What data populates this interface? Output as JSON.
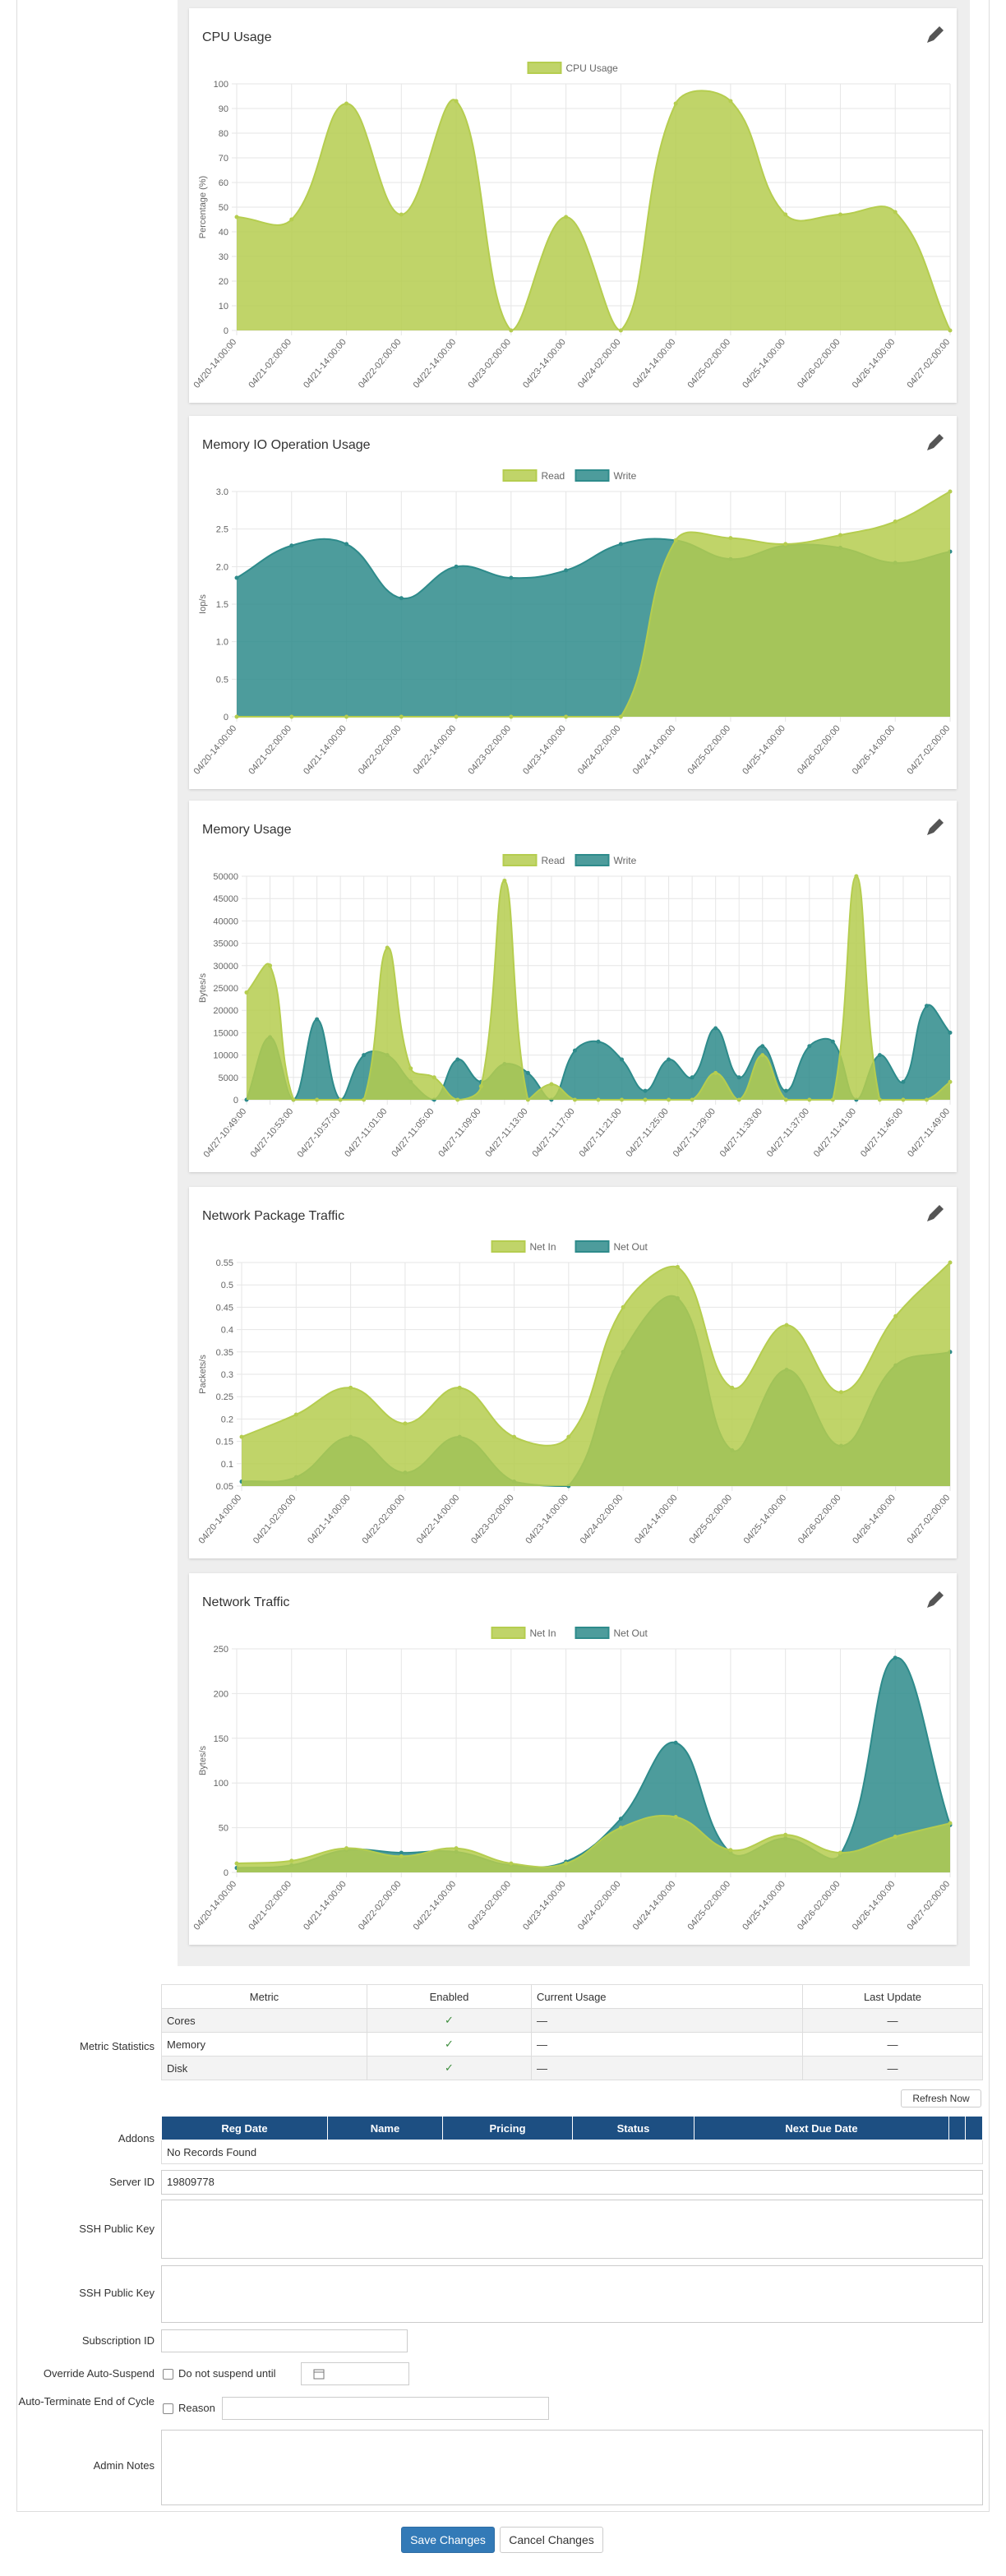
{
  "chart_data": [
    {
      "type": "area",
      "title": "CPU Usage",
      "y_label": "Percentage (%)",
      "categories": [
        "04/20-14:00:00",
        "04/21-02:00:00",
        "04/21-14:00:00",
        "04/22-02:00:00",
        "04/22-14:00:00",
        "04/23-02:00:00",
        "04/23-14:00:00",
        "04/24-02:00:00",
        "04/24-14:00:00",
        "04/25-02:00:00",
        "04/25-14:00:00",
        "04/26-02:00:00",
        "04/26-14:00:00",
        "04/27-02:00:00"
      ],
      "series": [
        {
          "name": "CPU Usage",
          "color": "#b5cd4f",
          "values": [
            46,
            45,
            92,
            47,
            93,
            0,
            46,
            0,
            92,
            93,
            47,
            47,
            48,
            0
          ]
        }
      ],
      "ylim": [
        0,
        100
      ],
      "yticks": [
        0,
        10,
        20,
        30,
        40,
        50,
        60,
        70,
        80,
        90,
        100
      ],
      "grid": true,
      "legend": "top"
    },
    {
      "type": "area",
      "title": "Memory IO Operation Usage",
      "y_label": "Iop/s",
      "categories": [
        "04/20-14:00:00",
        "04/21-02:00:00",
        "04/21-14:00:00",
        "04/22-02:00:00",
        "04/22-14:00:00",
        "04/23-02:00:00",
        "04/23-14:00:00",
        "04/24-02:00:00",
        "04/24-14:00:00",
        "04/25-02:00:00",
        "04/25-14:00:00",
        "04/26-02:00:00",
        "04/26-14:00:00",
        "04/27-02:00:00"
      ],
      "series": [
        {
          "name": "Read",
          "color": "#b5cd4f",
          "values": [
            0,
            0,
            0,
            0,
            0,
            0,
            0,
            0,
            2.35,
            2.38,
            2.3,
            2.42,
            2.6,
            3.0
          ]
        },
        {
          "name": "Write",
          "color": "#2e8b8b",
          "values": [
            1.85,
            2.28,
            2.3,
            1.58,
            2.0,
            1.85,
            1.95,
            2.3,
            2.35,
            2.1,
            2.28,
            2.25,
            2.05,
            2.2
          ]
        }
      ],
      "ylim": [
        0,
        3
      ],
      "yticks": [
        0,
        0.5,
        {
          "value": 1,
          "label": "1.0"
        },
        1.5,
        {
          "value": 2,
          "label": "2.0"
        },
        2.5,
        {
          "value": 3,
          "label": "3.0"
        }
      ],
      "grid": true,
      "legend": "top"
    },
    {
      "type": "area",
      "title": "Memory Usage",
      "y_label": "Bytes/s",
      "categories": [
        "04/27-10:49:00",
        null,
        "04/27-10:53:00",
        null,
        "04/27-10:57:00",
        null,
        "04/27-11:01:00",
        null,
        "04/27-11:05:00",
        null,
        "04/27-11:09:00",
        null,
        "04/27-11:13:00",
        null,
        "04/27-11:17:00",
        null,
        "04/27-11:21:00",
        null,
        "04/27-11:25:00",
        null,
        "04/27-11:29:00",
        null,
        "04/27-11:33:00",
        null,
        "04/27-11:37:00",
        null,
        "04/27-11:41:00",
        null,
        "04/27-11:45:00",
        null,
        "04/27-11:49:00"
      ],
      "series": [
        {
          "name": "Read",
          "color": "#b5cd4f",
          "values": [
            24000,
            30000,
            0,
            0,
            0,
            0,
            34000,
            7000,
            5000,
            0,
            3000,
            49000,
            0,
            3500,
            0,
            0,
            0,
            0,
            0,
            0,
            6000,
            0,
            10000,
            0,
            0,
            0,
            50000,
            0,
            0,
            0,
            4000
          ]
        },
        {
          "name": "Write",
          "color": "#2e8b8b",
          "values": [
            0,
            14000,
            0,
            18000,
            0,
            10000,
            10000,
            4000,
            0,
            9000,
            4000,
            8000,
            6000,
            0,
            11000,
            13000,
            9000,
            2000,
            9000,
            5000,
            16000,
            5000,
            12000,
            2000,
            12000,
            13000,
            0,
            10000,
            4000,
            21000,
            15000
          ]
        }
      ],
      "ylim": [
        0,
        50000
      ],
      "yticks": [
        0,
        5000,
        10000,
        15000,
        20000,
        25000,
        30000,
        35000,
        40000,
        45000,
        50000
      ],
      "grid": true,
      "legend": "top"
    },
    {
      "type": "area",
      "title": "Network Package Traffic",
      "y_label": "Packets/s",
      "categories": [
        "04/20-14:00:00",
        "04/21-02:00:00",
        "04/21-14:00:00",
        "04/22-02:00:00",
        "04/22-14:00:00",
        "04/23-02:00:00",
        "04/23-14:00:00",
        "04/24-02:00:00",
        "04/24-14:00:00",
        "04/25-02:00:00",
        "04/25-14:00:00",
        "04/26-02:00:00",
        "04/26-14:00:00",
        "04/27-02:00:00"
      ],
      "series": [
        {
          "name": "Net In",
          "color": "#b5cd4f",
          "values": [
            0.16,
            0.21,
            0.27,
            0.19,
            0.27,
            0.16,
            0.16,
            0.45,
            0.54,
            0.27,
            0.41,
            0.26,
            0.43,
            0.55
          ]
        },
        {
          "name": "Net Out",
          "color": "#2e8b8b",
          "values": [
            0.06,
            0.07,
            0.16,
            0.08,
            0.16,
            0.06,
            0.05,
            0.35,
            0.47,
            0.13,
            0.31,
            0.14,
            0.32,
            0.35
          ]
        }
      ],
      "ylim": [
        0.05,
        0.55
      ],
      "yticks": [
        0.05,
        0.1,
        0.15,
        0.2,
        0.25,
        0.3,
        0.35,
        0.4,
        0.45,
        0.5,
        0.55
      ],
      "grid": true,
      "legend": "top"
    },
    {
      "type": "area",
      "title": "Network Traffic",
      "y_label": "Bytes/s",
      "categories": [
        "04/20-14:00:00",
        "04/21-02:00:00",
        "04/21-14:00:00",
        "04/22-02:00:00",
        "04/22-14:00:00",
        "04/23-02:00:00",
        "04/23-14:00:00",
        "04/24-02:00:00",
        "04/24-14:00:00",
        "04/25-02:00:00",
        "04/25-14:00:00",
        "04/26-02:00:00",
        "04/26-14:00:00",
        "04/27-02:00:00"
      ],
      "series": [
        {
          "name": "Net In",
          "color": "#b5cd4f",
          "values": [
            10,
            13,
            27,
            18,
            27,
            10,
            10,
            50,
            62,
            25,
            42,
            22,
            40,
            55
          ]
        },
        {
          "name": "Net Out",
          "color": "#2e8b8b",
          "values": [
            5,
            8,
            25,
            22,
            23,
            8,
            12,
            60,
            145,
            22,
            38,
            20,
            240,
            53
          ]
        }
      ],
      "ylim": [
        0,
        250
      ],
      "yticks": [
        0,
        50,
        100,
        150,
        200,
        250
      ],
      "grid": true,
      "legend": "top"
    }
  ],
  "metric_statistics": {
    "label": "Metric Statistics",
    "columns": [
      "Metric",
      "Enabled",
      "Current Usage",
      "Last Update"
    ],
    "rows": [
      [
        "Cores",
        "✓",
        "—",
        "—"
      ],
      [
        "Memory",
        "✓",
        "—",
        "—"
      ],
      [
        "Disk",
        "✓",
        "—",
        "—"
      ]
    ],
    "refresh": "Refresh Now"
  },
  "addons": {
    "label": "Addons",
    "columns": [
      "Reg Date",
      "Name",
      "Pricing",
      "Status",
      "Next Due Date"
    ],
    "empty": "No Records Found"
  },
  "fields": [
    {
      "label": "Server ID",
      "value": "19809778"
    },
    {
      "label": "SSH Public Key"
    },
    {
      "label": "SSH Public Key"
    },
    {
      "label": "Subscription ID"
    },
    {
      "label": "Override Auto-Suspend",
      "option": "Do not suspend until"
    },
    {
      "label": "Auto-Terminate End of Cycle",
      "option": "Reason"
    },
    {
      "label": "Admin Notes"
    }
  ],
  "buttons": [
    "Save Changes",
    "Cancel Changes"
  ]
}
